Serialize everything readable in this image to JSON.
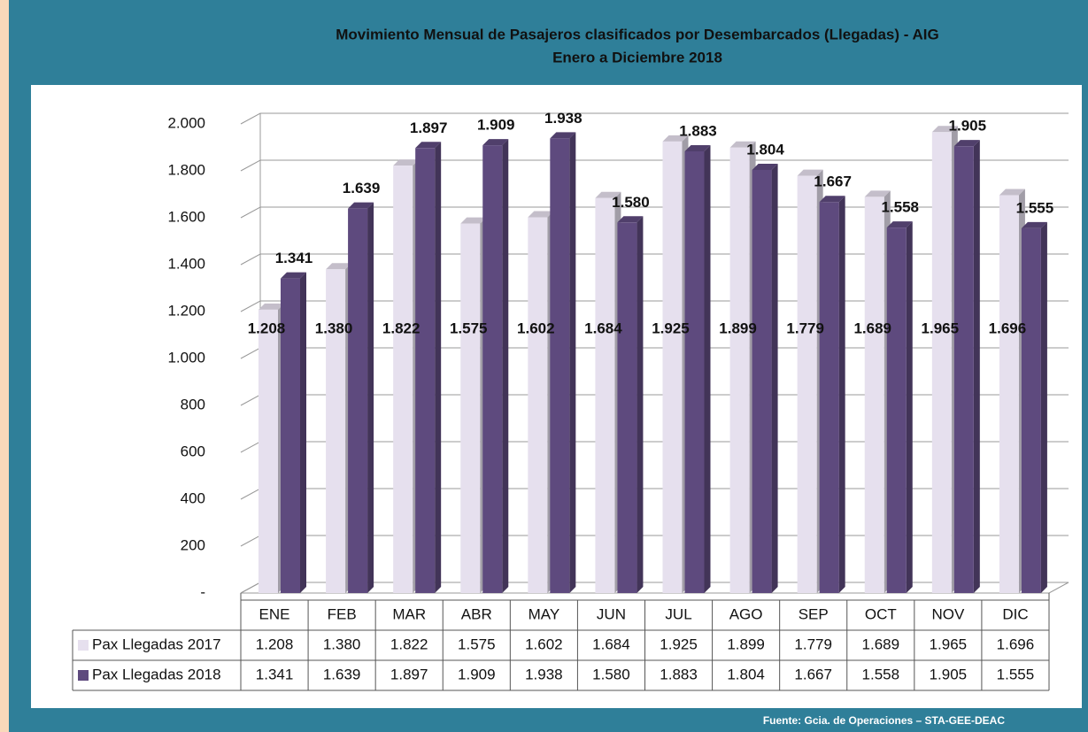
{
  "chart_data": {
    "type": "bar",
    "title": "Movimiento Mensual de Pasajeros clasificados por Desembarcados (Llegadas) - AIG",
    "subtitle": "Enero a  Diciembre 2018",
    "categories": [
      "ENE",
      "FEB",
      "MAR",
      "ABR",
      "MAY",
      "JUN",
      "JUL",
      "AGO",
      "SEP",
      "OCT",
      "NOV",
      "DIC"
    ],
    "series": [
      {
        "name": "Pax Llegadas 2017",
        "color": "#e6e0ee",
        "values": [
          1208,
          1380,
          1822,
          1575,
          1602,
          1684,
          1925,
          1899,
          1779,
          1689,
          1965,
          1696
        ],
        "value_labels": [
          "1.208",
          "1.380",
          "1.822",
          "1.575",
          "1.602",
          "1.684",
          "1.925",
          "1.899",
          "1.779",
          "1.689",
          "1.965",
          "1.696"
        ]
      },
      {
        "name": "Pax Llegadas 2018",
        "color": "#5e4a7e",
        "values": [
          1341,
          1639,
          1897,
          1909,
          1938,
          1580,
          1883,
          1804,
          1667,
          1558,
          1905,
          1555
        ],
        "value_labels": [
          "1.341",
          "1.639",
          "1.897",
          "1.909",
          "1.938",
          "1.580",
          "1.883",
          "1.804",
          "1.667",
          "1.558",
          "1.905",
          "1.555"
        ]
      }
    ],
    "ylim": [
      0,
      2000
    ],
    "yticks": [
      {
        "value": 0,
        "label": "-"
      },
      200,
      400,
      600,
      800,
      {
        "value": 1000,
        "label": "1.000"
      },
      {
        "value": 1200,
        "label": "1.200"
      },
      {
        "value": 1400,
        "label": "1.400"
      },
      {
        "value": 1600,
        "label": "1.600"
      },
      {
        "value": 1800,
        "label": "1.800"
      },
      {
        "value": 2000,
        "label": "2.000"
      }
    ],
    "grid": true,
    "source": "Fuente: Gcia. de Operaciones – STA-GEE-DEAC"
  }
}
